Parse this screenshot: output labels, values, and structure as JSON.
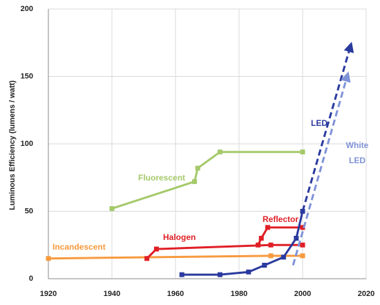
{
  "chart_data": {
    "type": "line",
    "y_label": "Luminous Efficiency (lumens / watt)",
    "xlim": [
      1920,
      2020
    ],
    "xticks": [
      1920,
      1940,
      1960,
      1980,
      2000,
      2020
    ],
    "ylim": [
      0,
      200
    ],
    "yticks": [
      0,
      50,
      100,
      150,
      200
    ],
    "series": [
      {
        "name": "Incandescent",
        "color": "#f79a3e",
        "x": [
          1920,
          1990,
          2000
        ],
        "values": [
          15,
          17,
          17
        ]
      },
      {
        "name": "Halogen",
        "color": "#e01f26",
        "x": [
          1951,
          1954,
          1990,
          2000
        ],
        "values": [
          15,
          22,
          25,
          25
        ]
      },
      {
        "name": "Reflector",
        "color": "#e01f26",
        "x": [
          1986,
          1987,
          1989,
          2000
        ],
        "values": [
          25,
          30,
          38,
          38
        ]
      },
      {
        "name": "Fluorescent",
        "color": "#a5c96a",
        "x": [
          1940,
          1966,
          1967,
          1974,
          2000
        ],
        "values": [
          52,
          72,
          82,
          94,
          94
        ]
      },
      {
        "name": "LED",
        "color": "#2b3a9e",
        "x": [
          1962,
          1974,
          1983,
          1988,
          1994,
          1998,
          2000
        ],
        "values": [
          3,
          3,
          5,
          10,
          16,
          30,
          50
        ],
        "projection": {
          "x": [
            2000,
            2015
          ],
          "values": [
            50,
            172
          ]
        }
      },
      {
        "name": "White LED",
        "color": "#7f93d8",
        "dashed": true,
        "x": [
          1997,
          2014
        ],
        "values": [
          10,
          150
        ]
      }
    ]
  }
}
